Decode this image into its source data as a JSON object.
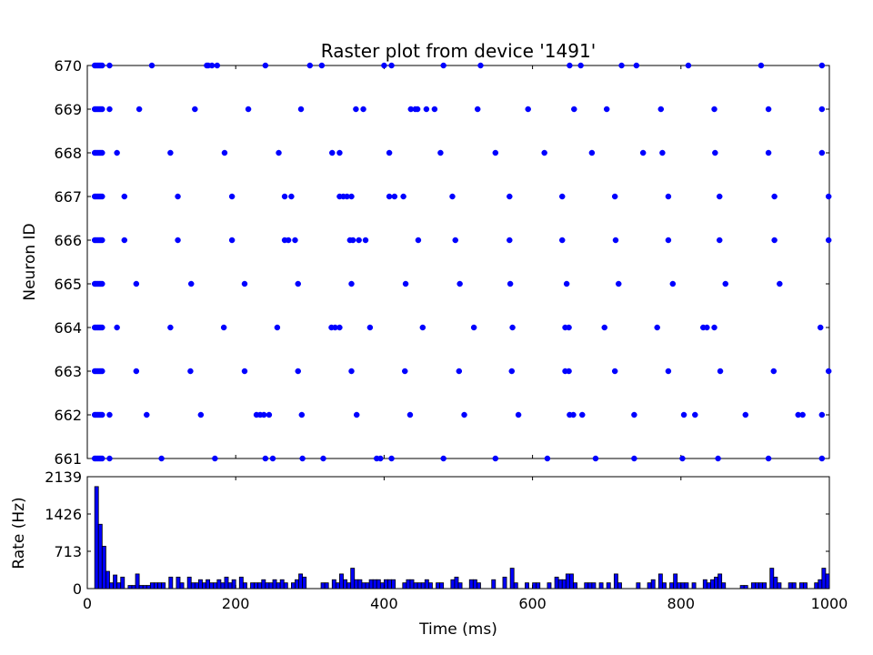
{
  "chart_data": [
    {
      "type": "scatter",
      "title": "Raster plot from device '1491'",
      "xlabel": "",
      "ylabel": "Neuron ID",
      "xlim": [
        0,
        1000
      ],
      "ylim": [
        661,
        670
      ],
      "yticks": [
        "661",
        "662",
        "663",
        "664",
        "665",
        "666",
        "667",
        "668",
        "669",
        "670"
      ],
      "marker_color": "#0000ff",
      "series": [
        {
          "neuron": 670,
          "x": [
            10,
            12,
            14,
            16,
            18,
            20,
            30,
            87,
            161,
            163,
            168,
            175,
            240,
            300,
            316,
            400,
            410,
            480,
            530,
            650,
            665,
            720,
            740,
            810,
            908,
            990
          ]
        },
        {
          "neuron": 669,
          "x": [
            10,
            12,
            14,
            16,
            18,
            20,
            30,
            70,
            145,
            217,
            288,
            362,
            372,
            436,
            442,
            445,
            457,
            468,
            526,
            594,
            656,
            700,
            773,
            845,
            918,
            990
          ]
        },
        {
          "neuron": 668,
          "x": [
            10,
            12,
            14,
            16,
            18,
            20,
            40,
            112,
            185,
            258,
            330,
            340,
            407,
            476,
            550,
            616,
            680,
            749,
            775,
            846,
            918,
            990
          ]
        },
        {
          "neuron": 667,
          "x": [
            10,
            12,
            14,
            16,
            18,
            20,
            50,
            122,
            195,
            266,
            275,
            340,
            345,
            350,
            356,
            407,
            414,
            426,
            492,
            569,
            640,
            711,
            783,
            852,
            926,
            999
          ]
        },
        {
          "neuron": 666,
          "x": [
            10,
            12,
            14,
            16,
            18,
            20,
            50,
            122,
            195,
            266,
            271,
            280,
            354,
            358,
            366,
            375,
            446,
            496,
            569,
            640,
            712,
            783,
            852,
            926,
            999
          ]
        },
        {
          "neuron": 665,
          "x": [
            10,
            12,
            14,
            16,
            18,
            20,
            66,
            140,
            212,
            284,
            356,
            429,
            502,
            570,
            646,
            716,
            789,
            860,
            933
          ]
        },
        {
          "neuron": 664,
          "x": [
            10,
            12,
            14,
            16,
            18,
            20,
            40,
            112,
            184,
            256,
            329,
            334,
            340,
            381,
            452,
            521,
            573,
            644,
            649,
            697,
            768,
            830,
            835,
            845,
            988
          ]
        },
        {
          "neuron": 663,
          "x": [
            10,
            12,
            14,
            16,
            18,
            20,
            66,
            139,
            212,
            284,
            356,
            428,
            501,
            572,
            644,
            649,
            711,
            783,
            853,
            925,
            999
          ]
        },
        {
          "neuron": 662,
          "x": [
            10,
            12,
            14,
            16,
            18,
            20,
            30,
            80,
            153,
            228,
            233,
            238,
            245,
            289,
            363,
            435,
            508,
            581,
            650,
            655,
            667,
            737,
            804,
            819,
            887,
            958,
            964,
            990
          ]
        },
        {
          "neuron": 661,
          "x": [
            10,
            12,
            14,
            16,
            18,
            20,
            30,
            100,
            172,
            240,
            250,
            290,
            318,
            390,
            395,
            410,
            480,
            550,
            620,
            685,
            737,
            802,
            850,
            918,
            990
          ]
        }
      ]
    },
    {
      "type": "bar",
      "title": "",
      "xlabel": "Time (ms)",
      "ylabel": "Rate (Hz)",
      "xlim": [
        0,
        1000
      ],
      "ylim": [
        0,
        2139
      ],
      "yticks": [
        "0",
        "713",
        "1426",
        "2139"
      ],
      "xticks": [
        "0",
        "200",
        "400",
        "600",
        "800",
        "1000"
      ],
      "bar_color": "#0000ff",
      "bin_width": 5,
      "bins": [
        [
          10,
          1950
        ],
        [
          15,
          1230
        ],
        [
          20,
          810
        ],
        [
          25,
          330
        ],
        [
          30,
          110
        ],
        [
          35,
          260
        ],
        [
          40,
          110
        ],
        [
          45,
          220
        ],
        [
          55,
          60
        ],
        [
          60,
          60
        ],
        [
          65,
          280
        ],
        [
          70,
          60
        ],
        [
          75,
          60
        ],
        [
          80,
          60
        ],
        [
          85,
          110
        ],
        [
          90,
          110
        ],
        [
          95,
          110
        ],
        [
          100,
          110
        ],
        [
          110,
          220
        ],
        [
          120,
          220
        ],
        [
          125,
          110
        ],
        [
          135,
          220
        ],
        [
          140,
          110
        ],
        [
          145,
          110
        ],
        [
          150,
          170
        ],
        [
          155,
          110
        ],
        [
          160,
          170
        ],
        [
          165,
          110
        ],
        [
          170,
          110
        ],
        [
          175,
          170
        ],
        [
          180,
          110
        ],
        [
          185,
          220
        ],
        [
          190,
          110
        ],
        [
          195,
          170
        ],
        [
          205,
          220
        ],
        [
          210,
          110
        ],
        [
          220,
          110
        ],
        [
          225,
          110
        ],
        [
          230,
          110
        ],
        [
          235,
          170
        ],
        [
          240,
          110
        ],
        [
          245,
          110
        ],
        [
          250,
          170
        ],
        [
          255,
          110
        ],
        [
          260,
          170
        ],
        [
          265,
          110
        ],
        [
          275,
          110
        ],
        [
          280,
          170
        ],
        [
          285,
          280
        ],
        [
          290,
          220
        ],
        [
          315,
          110
        ],
        [
          320,
          110
        ],
        [
          330,
          170
        ],
        [
          335,
          110
        ],
        [
          340,
          280
        ],
        [
          345,
          170
        ],
        [
          350,
          110
        ],
        [
          355,
          390
        ],
        [
          360,
          170
        ],
        [
          365,
          170
        ],
        [
          370,
          110
        ],
        [
          375,
          110
        ],
        [
          380,
          170
        ],
        [
          385,
          170
        ],
        [
          390,
          170
        ],
        [
          395,
          110
        ],
        [
          400,
          170
        ],
        [
          405,
          170
        ],
        [
          410,
          170
        ],
        [
          425,
          110
        ],
        [
          430,
          170
        ],
        [
          435,
          170
        ],
        [
          440,
          110
        ],
        [
          445,
          110
        ],
        [
          450,
          110
        ],
        [
          455,
          170
        ],
        [
          460,
          110
        ],
        [
          470,
          110
        ],
        [
          475,
          110
        ],
        [
          490,
          170
        ],
        [
          495,
          220
        ],
        [
          500,
          110
        ],
        [
          515,
          170
        ],
        [
          520,
          170
        ],
        [
          525,
          110
        ],
        [
          545,
          170
        ],
        [
          560,
          220
        ],
        [
          570,
          390
        ],
        [
          575,
          110
        ],
        [
          590,
          110
        ],
        [
          600,
          110
        ],
        [
          605,
          110
        ],
        [
          620,
          110
        ],
        [
          630,
          220
        ],
        [
          635,
          170
        ],
        [
          640,
          170
        ],
        [
          645,
          280
        ],
        [
          650,
          280
        ],
        [
          655,
          110
        ],
        [
          670,
          110
        ],
        [
          675,
          110
        ],
        [
          680,
          110
        ],
        [
          690,
          110
        ],
        [
          700,
          110
        ],
        [
          710,
          280
        ],
        [
          715,
          110
        ],
        [
          740,
          110
        ],
        [
          755,
          110
        ],
        [
          760,
          170
        ],
        [
          770,
          280
        ],
        [
          775,
          110
        ],
        [
          785,
          110
        ],
        [
          790,
          280
        ],
        [
          795,
          110
        ],
        [
          800,
          110
        ],
        [
          805,
          110
        ],
        [
          815,
          110
        ],
        [
          830,
          170
        ],
        [
          835,
          110
        ],
        [
          840,
          170
        ],
        [
          845,
          220
        ],
        [
          850,
          280
        ],
        [
          855,
          110
        ],
        [
          880,
          60
        ],
        [
          885,
          60
        ],
        [
          895,
          110
        ],
        [
          900,
          110
        ],
        [
          905,
          110
        ],
        [
          910,
          110
        ],
        [
          920,
          390
        ],
        [
          925,
          220
        ],
        [
          930,
          110
        ],
        [
          945,
          110
        ],
        [
          950,
          110
        ],
        [
          960,
          110
        ],
        [
          965,
          110
        ],
        [
          980,
          110
        ],
        [
          985,
          170
        ],
        [
          990,
          390
        ],
        [
          995,
          280
        ]
      ]
    }
  ]
}
